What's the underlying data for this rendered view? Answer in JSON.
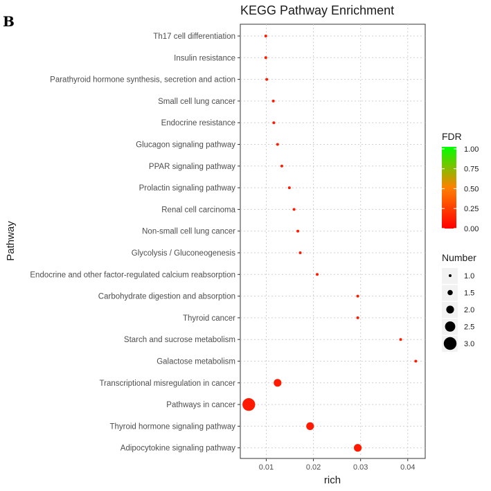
{
  "panel_letter": "B",
  "chart_data": {
    "type": "scatter",
    "title": "KEGG Pathway Enrichment",
    "xlabel": "rich",
    "ylabel": "Pathway",
    "xlim": [
      0.0045,
      0.0437
    ],
    "x_ticks": [
      0.01,
      0.02,
      0.03,
      0.04
    ],
    "x_tick_labels": [
      "0.01",
      "0.02",
      "0.03",
      "0.04"
    ],
    "grid": true,
    "points": [
      {
        "pathway": "Th17 cell differentiation",
        "rich": 0.0099,
        "number": 1,
        "fdr": 0.1
      },
      {
        "pathway": "Insulin resistance",
        "rich": 0.0099,
        "number": 1,
        "fdr": 0.1
      },
      {
        "pathway": "Parathyroid hormone synthesis, secretion and action",
        "rich": 0.0101,
        "number": 1,
        "fdr": 0.1
      },
      {
        "pathway": "Small cell lung cancer",
        "rich": 0.0115,
        "number": 1,
        "fdr": 0.1
      },
      {
        "pathway": "Endocrine resistance",
        "rich": 0.0116,
        "number": 1,
        "fdr": 0.1
      },
      {
        "pathway": "Glucagon signaling pathway",
        "rich": 0.0124,
        "number": 1,
        "fdr": 0.1
      },
      {
        "pathway": "PPAR signaling pathway",
        "rich": 0.0133,
        "number": 1,
        "fdr": 0.1
      },
      {
        "pathway": "Prolactin signaling pathway",
        "rich": 0.0149,
        "number": 1,
        "fdr": 0.1
      },
      {
        "pathway": "Renal cell carcinoma",
        "rich": 0.0159,
        "number": 1,
        "fdr": 0.1
      },
      {
        "pathway": "Non-small cell lung cancer",
        "rich": 0.0167,
        "number": 1,
        "fdr": 0.1
      },
      {
        "pathway": "Glycolysis / Gluconeogenesis",
        "rich": 0.0172,
        "number": 1,
        "fdr": 0.1
      },
      {
        "pathway": "Endocrine and other factor-regulated calcium reabsorption",
        "rich": 0.0208,
        "number": 1,
        "fdr": 0.1
      },
      {
        "pathway": "Carbohydrate digestion and absorption",
        "rich": 0.0294,
        "number": 1,
        "fdr": 0.1
      },
      {
        "pathway": "Thyroid cancer",
        "rich": 0.0294,
        "number": 1,
        "fdr": 0.1
      },
      {
        "pathway": "Starch and sucrose metabolism",
        "rich": 0.0385,
        "number": 1,
        "fdr": 0.1
      },
      {
        "pathway": "Galactose metabolism",
        "rich": 0.0417,
        "number": 1,
        "fdr": 0.1
      },
      {
        "pathway": "Transcriptional misregulation in cancer",
        "rich": 0.0124,
        "number": 2,
        "fdr": 0.1
      },
      {
        "pathway": "Pathways in cancer",
        "rich": 0.0063,
        "number": 3,
        "fdr": 0.1
      },
      {
        "pathway": "Thyroid hormone signaling pathway",
        "rich": 0.0193,
        "number": 2,
        "fdr": 0.1
      },
      {
        "pathway": "Adipocytokine signaling pathway",
        "rich": 0.0294,
        "number": 2,
        "fdr": 0.1
      }
    ],
    "legend_fdr": {
      "title": "FDR",
      "range": [
        0,
        1
      ],
      "ticks": [
        "1.00",
        "0.75",
        "0.50",
        "0.25",
        "0.00"
      ],
      "color_low": "#ff0000",
      "color_high": "#00ff00"
    },
    "legend_number": {
      "title": "Number",
      "values": [
        1.0,
        1.5,
        2.0,
        2.5,
        3.0
      ],
      "labels": [
        "1.0",
        "1.5",
        "2.0",
        "2.5",
        "3.0"
      ]
    }
  }
}
